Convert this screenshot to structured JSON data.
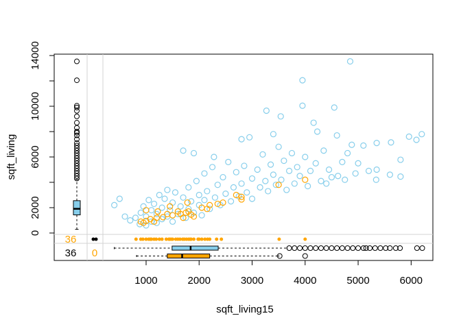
{
  "chart_data": {
    "type": "scatter",
    "x_label": "sqft_living15",
    "y_label": "sqft_living",
    "xlim": [
      185,
      6410
    ],
    "ylim": [
      -110,
      14110
    ],
    "xticks": [
      1000,
      2000,
      3000,
      4000,
      5000,
      6000
    ],
    "yticks": [
      0,
      2000,
      {
        "value": 4000,
        "label": null
      },
      6000,
      {
        "value": 8000,
        "label": null
      },
      10000,
      {
        "value": 12000,
        "label": null
      },
      14000
    ],
    "series": [
      {
        "color": "#87ceeb",
        "x": [
          400,
          500,
          600,
          700,
          800,
          880,
          900,
          950,
          1000,
          1000,
          1050,
          1100,
          1100,
          1150,
          1200,
          1200,
          1250,
          1300,
          1300,
          1350,
          1400,
          1400,
          1450,
          1500,
          1500,
          1550,
          1600,
          1650,
          1700,
          1700,
          1750,
          1800,
          1800,
          1850,
          1900,
          1900,
          1950,
          2000,
          2000,
          2050,
          2100,
          2100,
          2150,
          2200,
          2250,
          2280,
          2300,
          2350,
          2400,
          2450,
          2500,
          2550,
          2600,
          2650,
          2700,
          2750,
          2800,
          2800,
          2850,
          2900,
          2950,
          3000,
          3000,
          3100,
          3150,
          3200,
          3250,
          3270,
          3300,
          3350,
          3400,
          3400,
          3450,
          3500,
          3540,
          3550,
          3600,
          3650,
          3700,
          3750,
          3800,
          3850,
          3900,
          3950,
          3950,
          4000,
          4050,
          4100,
          4160,
          4200,
          4230,
          4300,
          4350,
          4400,
          4450,
          4500,
          4550,
          4600,
          4620,
          4700,
          4750,
          4800,
          4850,
          4880,
          4950,
          5000,
          5100,
          5200,
          5340,
          5350,
          5350,
          5600,
          5620,
          5800,
          5800,
          5960,
          6100,
          6200
        ],
        "values": [
          2200,
          2700,
          1300,
          1000,
          1200,
          700,
          1600,
          2100,
          600,
          1300,
          2600,
          900,
          1800,
          2300,
          800,
          1500,
          3000,
          1100,
          2000,
          2700,
          1300,
          3400,
          1800,
          900,
          2400,
          3200,
          1500,
          2100,
          6500,
          2800,
          1200,
          3600,
          1900,
          2500,
          6300,
          1600,
          4100,
          2200,
          3000,
          1400,
          2600,
          4700,
          3300,
          1900,
          5200,
          6000,
          2800,
          3800,
          2200,
          4400,
          3100,
          5600,
          2500,
          3600,
          4800,
          2900,
          7400,
          3900,
          5300,
          3200,
          7550,
          4300,
          2700,
          5000,
          3600,
          6200,
          4100,
          9650,
          3300,
          5400,
          7800,
          4600,
          3800,
          6800,
          9200,
          4200,
          5700,
          3400,
          4900,
          6300,
          3900,
          5200,
          4500,
          12050,
          10040,
          6000,
          3700,
          4900,
          8700,
          5500,
          8000,
          4100,
          6500,
          3900,
          5000,
          4400,
          9900,
          7700,
          4500,
          5600,
          4200,
          6300,
          13540,
          6960,
          4700,
          5500,
          6900,
          4900,
          4200,
          7100,
          5000,
          4600,
          7150,
          5780,
          4450,
          7600,
          7350,
          7800
        ]
      },
      {
        "color": "#ffa500",
        "x": [
          900,
          950,
          1000,
          1080,
          1200,
          1220,
          1320,
          1400,
          1450,
          1500,
          1600,
          1650,
          1700,
          1750,
          1780,
          1800,
          1850,
          1900,
          2050,
          2150,
          2200,
          2350,
          2450,
          2700,
          2800,
          2800,
          3500,
          4000,
          1000,
          1150
        ],
        "values": [
          900,
          800,
          950,
          1100,
          1200,
          1700,
          1250,
          1500,
          2100,
          1400,
          1700,
          1500,
          1200,
          1600,
          2400,
          1700,
          1450,
          1300,
          2000,
          1900,
          2200,
          2300,
          2400,
          3000,
          2850,
          2650,
          3800,
          4200,
          1800,
          900
        ]
      }
    ],
    "missing_points": {
      "color": "#ffa500",
      "x": [
        810,
        900,
        940,
        1000,
        1050,
        1080,
        1100,
        1150,
        1190,
        1250,
        1300,
        1380,
        1430,
        1440,
        1470,
        1500,
        1560,
        1600,
        1640,
        1690,
        1720,
        1760,
        1800,
        1830,
        1850,
        1900,
        1980,
        2000,
        2050,
        2110,
        2160,
        2200,
        2330,
        2420,
        3510,
        4000
      ]
    },
    "y_boxplot": {
      "color": "#87ceeb",
      "whisker_low": 290,
      "q1": 1430,
      "median": 1910,
      "q3": 2550,
      "whisker_high": 4230,
      "outliers": [
        4300,
        4500,
        4700,
        4900,
        5100,
        5300,
        5500,
        5700,
        5900,
        6100,
        6300,
        6500,
        6700,
        6900,
        7100,
        7400,
        7700,
        7900,
        8000,
        8300,
        8700,
        9200,
        9640,
        9900,
        10040,
        12050,
        13540
      ]
    },
    "x_boxplots": [
      {
        "color": "#87ceeb",
        "whisker_low": 399,
        "q1": 1490,
        "median": 1840,
        "q3": 2360,
        "whisker_high": 3660,
        "outliers": [
          3700,
          3800,
          3900,
          4000,
          4100,
          4200,
          4300,
          4400,
          4500,
          4600,
          4700,
          4800,
          4900,
          5000,
          5100,
          5150,
          5220,
          5320,
          5420,
          5520,
          5600,
          5710,
          5790,
          6110,
          6210
        ]
      },
      {
        "color": "#ffa500",
        "whisker_low": 820,
        "q1": 1400,
        "median": 1680,
        "q3": 2200,
        "whisker_high": 3500,
        "outliers": [
          3520,
          4000
        ]
      }
    ],
    "missing_counts": [
      {
        "value": 36,
        "color": "#ffa500"
      },
      {
        "value": 36,
        "color": "#000000"
      },
      {
        "value": 0,
        "color": "#ffa500"
      }
    ]
  }
}
